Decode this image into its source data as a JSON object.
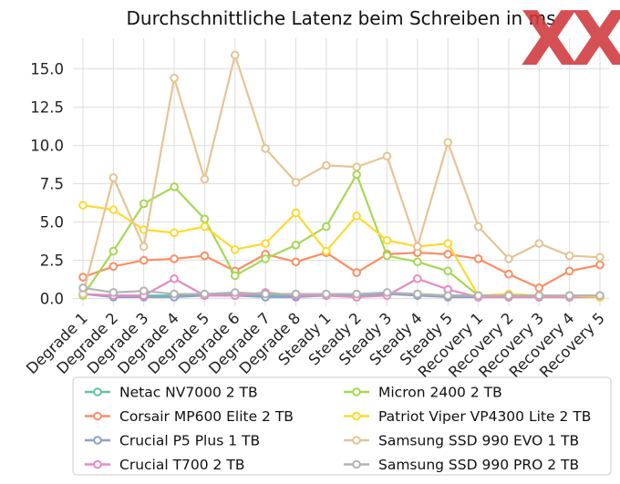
{
  "chart_data": {
    "type": "line",
    "title": "Durchschnittliche Latenz beim Schreiben in ms",
    "xlabel": "",
    "ylabel": "",
    "x": [
      "Degrade 1",
      "Degrade 2",
      "Degrade 3",
      "Degrade 4",
      "Degrade 5",
      "Degrade 6",
      "Degrade 7",
      "Degrade 8",
      "Steady 1",
      "Steady 2",
      "Steady 3",
      "Steady 4",
      "Steady 5",
      "Recovery 1",
      "Recovery 2",
      "Recovery 3",
      "Recovery 4",
      "Recovery 5"
    ],
    "ylim": [
      -0.5,
      17.0
    ],
    "yticks": [
      "0.0",
      "2.5",
      "5.0",
      "7.5",
      "10.0",
      "12.5",
      "15.0"
    ],
    "grid": true,
    "legend_position": "bottom",
    "series": [
      {
        "name": "Netac NV7000 2 TB",
        "color": "#66c2a5",
        "values": [
          0.3,
          0.2,
          0.2,
          0.2,
          0.2,
          0.3,
          0.2,
          0.2,
          0.2,
          0.2,
          0.3,
          0.3,
          0.2,
          0.2,
          0.1,
          0.1,
          0.1,
          0.1
        ]
      },
      {
        "name": "Corsair MP600 Elite 2 TB",
        "color": "#fc8d62",
        "values": [
          1.4,
          2.1,
          2.5,
          2.6,
          2.8,
          1.8,
          2.9,
          2.4,
          3.0,
          1.7,
          2.9,
          3.0,
          2.9,
          2.6,
          1.6,
          0.7,
          1.8,
          2.2
        ]
      },
      {
        "name": "Crucial P5 Plus 1 TB",
        "color": "#8da0cb",
        "values": [
          0.3,
          0.1,
          0.1,
          0.1,
          0.2,
          0.2,
          0.1,
          0.1,
          0.2,
          0.1,
          0.3,
          0.2,
          0.1,
          0.1,
          0.1,
          0.1,
          0.1,
          0.1
        ]
      },
      {
        "name": "Crucial T700 2 TB",
        "color": "#e78ac3",
        "values": [
          0.3,
          0.2,
          0.2,
          1.3,
          0.2,
          0.2,
          0.4,
          0.2,
          0.2,
          0.1,
          0.2,
          1.3,
          0.6,
          0.1,
          0.1,
          0.1,
          0.1,
          0.1
        ]
      },
      {
        "name": "Micron 2400 2 TB",
        "color": "#a6d854",
        "values": [
          0.2,
          3.1,
          6.2,
          7.3,
          5.2,
          1.5,
          2.6,
          3.5,
          4.7,
          8.1,
          2.8,
          2.4,
          1.8,
          0.2,
          0.2,
          0.2,
          0.2,
          0.2
        ]
      },
      {
        "name": "Patriot Viper VP4300 Lite 2 TB",
        "color": "#ffd92f",
        "values": [
          6.1,
          5.8,
          4.5,
          4.3,
          4.7,
          3.2,
          3.6,
          5.6,
          3.1,
          5.4,
          3.8,
          3.4,
          3.6,
          0.2,
          0.3,
          0.2,
          0.2,
          0.1
        ]
      },
      {
        "name": "Samsung SSD 990 EVO 1 TB",
        "color": "#e5c494",
        "values": [
          0.3,
          7.9,
          3.4,
          14.4,
          7.8,
          15.9,
          9.8,
          7.6,
          8.7,
          8.6,
          9.3,
          3.4,
          10.2,
          4.7,
          2.6,
          3.6,
          2.8,
          2.7
        ]
      },
      {
        "name": "Samsung SSD 990 PRO 2 TB",
        "color": "#b3b3b3",
        "values": [
          0.7,
          0.4,
          0.5,
          0.3,
          0.3,
          0.4,
          0.3,
          0.3,
          0.3,
          0.3,
          0.4,
          0.3,
          0.2,
          0.2,
          0.2,
          0.2,
          0.2,
          0.2
        ]
      }
    ]
  },
  "logo": {
    "text": "XX",
    "color": "#d0393e"
  }
}
